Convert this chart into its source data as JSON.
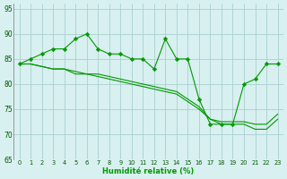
{
  "xlabel": "Humidité relative (%)",
  "background_color": "#d8f0f0",
  "grid_color": "#aacfcf",
  "line_color": "#009900",
  "xlim": [
    -0.5,
    23.5
  ],
  "ylim": [
    65,
    96
  ],
  "yticks": [
    65,
    70,
    75,
    80,
    85,
    90,
    95
  ],
  "xticks": [
    0,
    1,
    2,
    3,
    4,
    5,
    6,
    7,
    8,
    9,
    10,
    11,
    12,
    13,
    14,
    15,
    16,
    17,
    18,
    19,
    20,
    21,
    22,
    23
  ],
  "series1_x": [
    0,
    1,
    2,
    3,
    4,
    5,
    6,
    7,
    8,
    9,
    10,
    11,
    12,
    13,
    14,
    15,
    16,
    17,
    18,
    19,
    20,
    21,
    22,
    23
  ],
  "series1_y": [
    84,
    85,
    86,
    87,
    87,
    89,
    90,
    87,
    86,
    86,
    85,
    85,
    83,
    89,
    85,
    85,
    77,
    72,
    72,
    72,
    80,
    81,
    84,
    84
  ],
  "series2_x": [
    0,
    1,
    2,
    3,
    4,
    5,
    6,
    7,
    8,
    9,
    10,
    11,
    12,
    13,
    14,
    15,
    16,
    17,
    18,
    19,
    20,
    21,
    22,
    23
  ],
  "series2_y": [
    84,
    84,
    83.5,
    83,
    83,
    82.5,
    82,
    82,
    81.5,
    81,
    80.5,
    80,
    79.5,
    79,
    78.5,
    77,
    75.5,
    73,
    72.5,
    72.5,
    72.5,
    72,
    72,
    74
  ],
  "series3_x": [
    0,
    1,
    2,
    3,
    4,
    5,
    6,
    7,
    8,
    9,
    10,
    11,
    12,
    13,
    14,
    15,
    16,
    17,
    18,
    19,
    20,
    21,
    22,
    23
  ],
  "series3_y": [
    84,
    84,
    83.5,
    83,
    83,
    82,
    82,
    81.5,
    81,
    80.5,
    80,
    79.5,
    79,
    78.5,
    78,
    76.5,
    75,
    73,
    72,
    72,
    72,
    71,
    71,
    73
  ]
}
